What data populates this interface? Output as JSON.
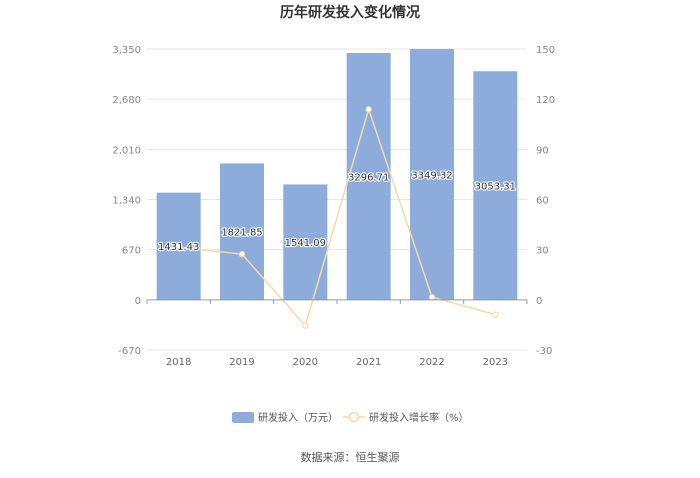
{
  "chart_data": {
    "type": "bar",
    "title": "历年研发投入变化情况",
    "categories": [
      "2018",
      "2019",
      "2020",
      "2021",
      "2022",
      "2023"
    ],
    "series": [
      {
        "name": "研发投入（万元）",
        "type": "bar",
        "axis": "left",
        "values": [
          1431.43,
          1821.85,
          1541.09,
          3296.71,
          3349.32,
          3053.31
        ],
        "labels": [
          "1431.43",
          "1821.85",
          "1541.09",
          "3296.71",
          "3349.32",
          "3053.31"
        ],
        "color": "#8eacdb"
      },
      {
        "name": "研发投入增长率（%）",
        "type": "line",
        "axis": "right",
        "values": [
          31.5,
          27.3,
          -15.4,
          113.9,
          1.6,
          -8.8
        ],
        "color": "#f5d9a8"
      }
    ],
    "y_left": {
      "ylim": [
        -670,
        3350
      ],
      "ticks": [
        -670,
        0,
        670,
        1340,
        2010,
        2680,
        3350
      ],
      "tick_labels": [
        "-670",
        "0",
        "670",
        "1,340",
        "2,010",
        "2,680",
        "3,350"
      ]
    },
    "y_right": {
      "ylim": [
        -30,
        150
      ],
      "ticks": [
        -30,
        0,
        30,
        60,
        90,
        120,
        150
      ],
      "tick_labels": [
        "-30",
        "0",
        "30",
        "60",
        "90",
        "120",
        "150"
      ]
    },
    "grid": true,
    "legend_position": "bottom"
  },
  "source": "数据来源：恒生聚源"
}
